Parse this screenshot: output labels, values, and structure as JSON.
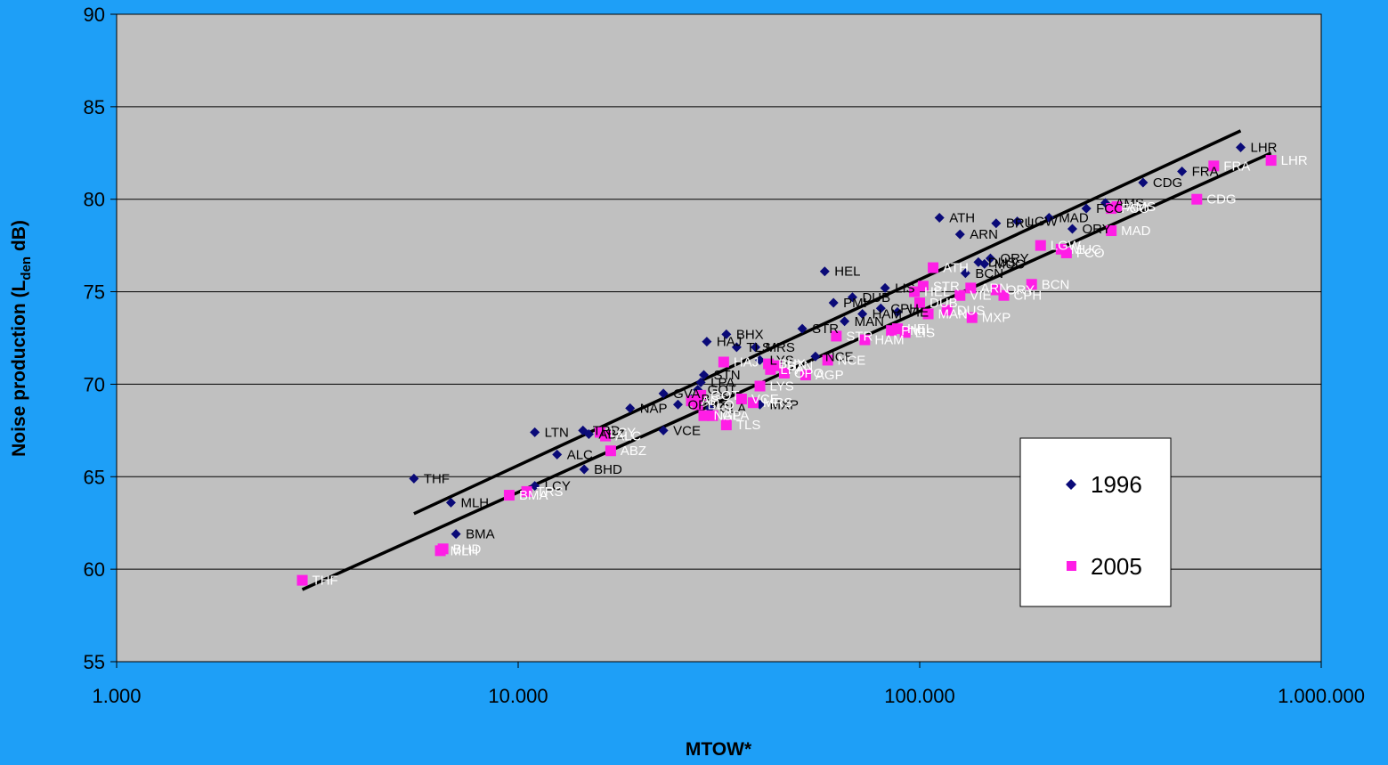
{
  "chart_data": {
    "type": "scatter",
    "title": "",
    "xlabel": "MTOW*",
    "ylabel_main": "Noise production (L",
    "ylabel_sub": "den",
    "ylabel_tail": " dB)",
    "x_scale": "log",
    "xlim": [
      1000,
      1000000
    ],
    "ylim": [
      55,
      90
    ],
    "x_ticks": [
      {
        "value": 1000,
        "label": "1.000"
      },
      {
        "value": 10000,
        "label": "10.000"
      },
      {
        "value": 100000,
        "label": "100.000"
      },
      {
        "value": 1000000,
        "label": "1.000.000"
      }
    ],
    "y_ticks": [
      55,
      60,
      65,
      70,
      75,
      80,
      85,
      90
    ],
    "grid": true,
    "plot_background": "#c0c0c0",
    "page_background": "#1e9ff7",
    "legend_position": "lower-right",
    "series": [
      {
        "name": "1996",
        "color": "#0a0a78",
        "marker": "diamond",
        "label_color": "#000000",
        "points": [
          {
            "label": "THF",
            "x": 5500,
            "y": 64.9
          },
          {
            "label": "MLH",
            "x": 6800,
            "y": 63.6
          },
          {
            "label": "BMA",
            "x": 7000,
            "y": 61.9
          },
          {
            "label": "LCY",
            "x": 11000,
            "y": 64.5
          },
          {
            "label": "LTN",
            "x": 11000,
            "y": 67.4
          },
          {
            "label": "ALC",
            "x": 12500,
            "y": 66.2
          },
          {
            "label": "TRD",
            "x": 14500,
            "y": 67.5
          },
          {
            "label": "ABZ",
            "x": 15000,
            "y": 67.3
          },
          {
            "label": "BHD",
            "x": 14600,
            "y": 65.4
          },
          {
            "label": "NAP",
            "x": 19000,
            "y": 68.7
          },
          {
            "label": "VCE",
            "x": 23000,
            "y": 67.5
          },
          {
            "label": "GVA",
            "x": 23000,
            "y": 69.5
          },
          {
            "label": "OPO",
            "x": 25000,
            "y": 68.9
          },
          {
            "label": "BLQ",
            "x": 27000,
            "y": 69.2
          },
          {
            "label": "GOT",
            "x": 28000,
            "y": 69.7
          },
          {
            "label": "LPA",
            "x": 28500,
            "y": 70.1
          },
          {
            "label": "STN",
            "x": 29000,
            "y": 70.5
          },
          {
            "label": "GLA",
            "x": 30000,
            "y": 68.7
          },
          {
            "label": "HAJ",
            "x": 29500,
            "y": 72.3
          },
          {
            "label": "BHX",
            "x": 33000,
            "y": 72.7
          },
          {
            "label": "TLS",
            "x": 35000,
            "y": 72.0
          },
          {
            "label": "MRS",
            "x": 39000,
            "y": 72.0
          },
          {
            "label": "LYS",
            "x": 40000,
            "y": 71.3
          },
          {
            "label": "MXP",
            "x": 40000,
            "y": 68.9
          },
          {
            "label": "NCE",
            "x": 55000,
            "y": 71.5
          },
          {
            "label": "STR",
            "x": 51000,
            "y": 73.0
          },
          {
            "label": "PMI",
            "x": 61000,
            "y": 74.4
          },
          {
            "label": "HEL",
            "x": 58000,
            "y": 76.1
          },
          {
            "label": "MAN",
            "x": 65000,
            "y": 73.4
          },
          {
            "label": "DUB",
            "x": 68000,
            "y": 74.7
          },
          {
            "label": "HAM",
            "x": 72000,
            "y": 73.8
          },
          {
            "label": "CPH",
            "x": 80000,
            "y": 74.1
          },
          {
            "label": "VIE",
            "x": 88000,
            "y": 73.9
          },
          {
            "label": "LIS",
            "x": 82000,
            "y": 75.2
          },
          {
            "label": "ATH",
            "x": 112000,
            "y": 79.0
          },
          {
            "label": "ARN",
            "x": 126000,
            "y": 78.1
          },
          {
            "label": "BCN",
            "x": 130000,
            "y": 76.0
          },
          {
            "label": "DUS",
            "x": 140000,
            "y": 76.6
          },
          {
            "label": "MUC",
            "x": 145000,
            "y": 76.5
          },
          {
            "label": "ORY",
            "x": 150000,
            "y": 76.8
          },
          {
            "label": "BRU",
            "x": 155000,
            "y": 78.7
          },
          {
            "label": "LGW",
            "x": 175000,
            "y": 78.8
          },
          {
            "label": "MAD",
            "x": 210000,
            "y": 79.0
          },
          {
            "label": "ORY",
            "x": 240000,
            "y": 78.4
          },
          {
            "label": "FCO",
            "x": 260000,
            "y": 79.5
          },
          {
            "label": "AMS",
            "x": 290000,
            "y": 79.8
          },
          {
            "label": "CDG",
            "x": 360000,
            "y": 80.9
          },
          {
            "label": "FRA",
            "x": 450000,
            "y": 81.5
          },
          {
            "label": "LHR",
            "x": 630000,
            "y": 82.8
          }
        ]
      },
      {
        "name": "2005",
        "color": "#ff1ee6",
        "marker": "square",
        "label_color": "#ffffff",
        "points": [
          {
            "label": "THF",
            "x": 2900,
            "y": 59.4
          },
          {
            "label": "MLH",
            "x": 6400,
            "y": 61.0
          },
          {
            "label": "BHD",
            "x": 6500,
            "y": 61.1
          },
          {
            "label": "BMA",
            "x": 9500,
            "y": 64.0
          },
          {
            "label": "TRS",
            "x": 10500,
            "y": 64.2
          },
          {
            "label": "LCY",
            "x": 16000,
            "y": 67.4
          },
          {
            "label": "ALC",
            "x": 16500,
            "y": 67.2
          },
          {
            "label": "ABZ",
            "x": 17000,
            "y": 66.4
          },
          {
            "label": "AP",
            "x": 27000,
            "y": 69.1
          },
          {
            "label": "BLQ",
            "x": 28000,
            "y": 68.9
          },
          {
            "label": "GOT",
            "x": 28500,
            "y": 69.4
          },
          {
            "label": "NAP",
            "x": 29000,
            "y": 68.3
          },
          {
            "label": "GLA",
            "x": 30500,
            "y": 68.3
          },
          {
            "label": "TLS",
            "x": 33000,
            "y": 67.8
          },
          {
            "label": "HAJ",
            "x": 32500,
            "y": 71.2
          },
          {
            "label": "VCE",
            "x": 36000,
            "y": 69.2
          },
          {
            "label": "MRS",
            "x": 38500,
            "y": 69.0
          },
          {
            "label": "LYS",
            "x": 40000,
            "y": 69.9
          },
          {
            "label": "BHX",
            "x": 42000,
            "y": 71.1
          },
          {
            "label": "LPA",
            "x": 42500,
            "y": 70.8
          },
          {
            "label": "STN",
            "x": 44000,
            "y": 71.0
          },
          {
            "label": "OPO",
            "x": 46000,
            "y": 70.6
          },
          {
            "label": "AGP",
            "x": 52000,
            "y": 70.5
          },
          {
            "label": "NCE",
            "x": 59000,
            "y": 71.3
          },
          {
            "label": "STR",
            "x": 62000,
            "y": 72.6
          },
          {
            "label": "HAM",
            "x": 73000,
            "y": 72.4
          },
          {
            "label": "PMI",
            "x": 85000,
            "y": 72.9
          },
          {
            "label": "HEL",
            "x": 88000,
            "y": 73.0
          },
          {
            "label": "LIS",
            "x": 92000,
            "y": 72.8
          },
          {
            "label": "MAN",
            "x": 105000,
            "y": 73.8
          },
          {
            "label": "DUB",
            "x": 100000,
            "y": 74.4
          },
          {
            "label": "HEL",
            "x": 97000,
            "y": 75.0
          },
          {
            "label": "ATH",
            "x": 108000,
            "y": 76.3
          },
          {
            "label": "STR",
            "x": 102000,
            "y": 75.3
          },
          {
            "label": "DUS",
            "x": 117000,
            "y": 74.0
          },
          {
            "label": "VIE",
            "x": 126000,
            "y": 74.8
          },
          {
            "label": "ARN",
            "x": 134000,
            "y": 75.2
          },
          {
            "label": "MXP",
            "x": 135000,
            "y": 73.6
          },
          {
            "label": "ORY",
            "x": 155000,
            "y": 75.1
          },
          {
            "label": "CPH",
            "x": 162000,
            "y": 74.8
          },
          {
            "label": "BCN",
            "x": 190000,
            "y": 75.4
          },
          {
            "label": "LGW",
            "x": 200000,
            "y": 77.5
          },
          {
            "label": "MUC",
            "x": 225000,
            "y": 77.3
          },
          {
            "label": "FCO",
            "x": 232000,
            "y": 77.1
          },
          {
            "label": "MAD",
            "x": 300000,
            "y": 78.3
          },
          {
            "label": "FCO",
            "x": 300000,
            "y": 79.5
          },
          {
            "label": "AMS",
            "x": 310000,
            "y": 79.6
          },
          {
            "label": "CDG",
            "x": 490000,
            "y": 80.0
          },
          {
            "label": "FRA",
            "x": 540000,
            "y": 81.8
          },
          {
            "label": "LHR",
            "x": 750000,
            "y": 82.1
          }
        ]
      }
    ],
    "trendlines": [
      {
        "series": "1996",
        "x": [
          5500,
          630000
        ],
        "y": [
          63.0,
          83.7
        ]
      },
      {
        "series": "2005",
        "x": [
          2900,
          750000
        ],
        "y": [
          58.9,
          82.5
        ]
      }
    ]
  }
}
